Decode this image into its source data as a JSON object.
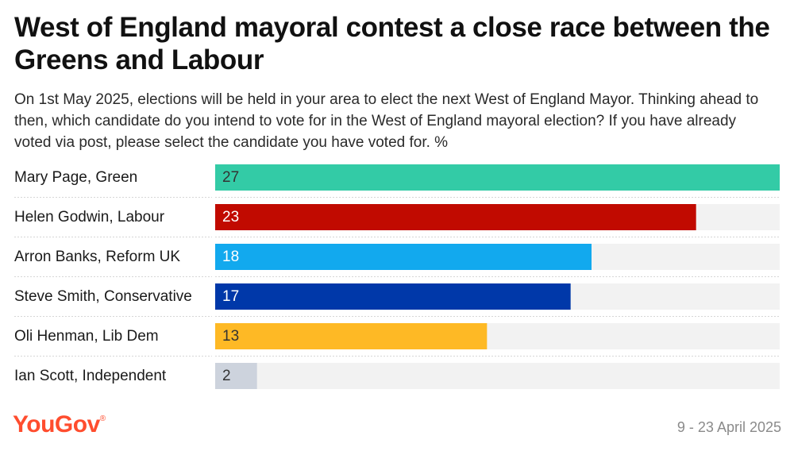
{
  "title": "West of England mayoral contest a close race between the Greens and Labour",
  "subtitle": "On 1st May 2025, elections will be held in your area to elect the next West of England Mayor. Thinking ahead to then, which candidate do you intend to vote for in the West of England mayoral election? If you have already voted via post, please select the candidate you have voted for. %",
  "footer": {
    "brand": "YouGov",
    "date": "9 - 23 April 2025"
  },
  "chart_data": {
    "type": "bar",
    "orientation": "horizontal",
    "categories": [
      "Mary Page, Green",
      "Helen Godwin, Labour",
      "Arron Banks, Reform UK",
      "Steve Smith, Conservative",
      "Oli Henman, Lib Dem",
      "Ian Scott, Independent"
    ],
    "values": [
      27,
      23,
      18,
      17,
      13,
      2
    ],
    "colors": [
      "#33cba6",
      "#c10a00",
      "#12a9ee",
      "#0038a9",
      "#feb925",
      "#cdd3dd"
    ],
    "label_colors": [
      "#333333",
      "#ffffff",
      "#ffffff",
      "#ffffff",
      "#333333",
      "#333333"
    ],
    "track_color": "#f2f2f2",
    "xlim": [
      0,
      27
    ]
  }
}
